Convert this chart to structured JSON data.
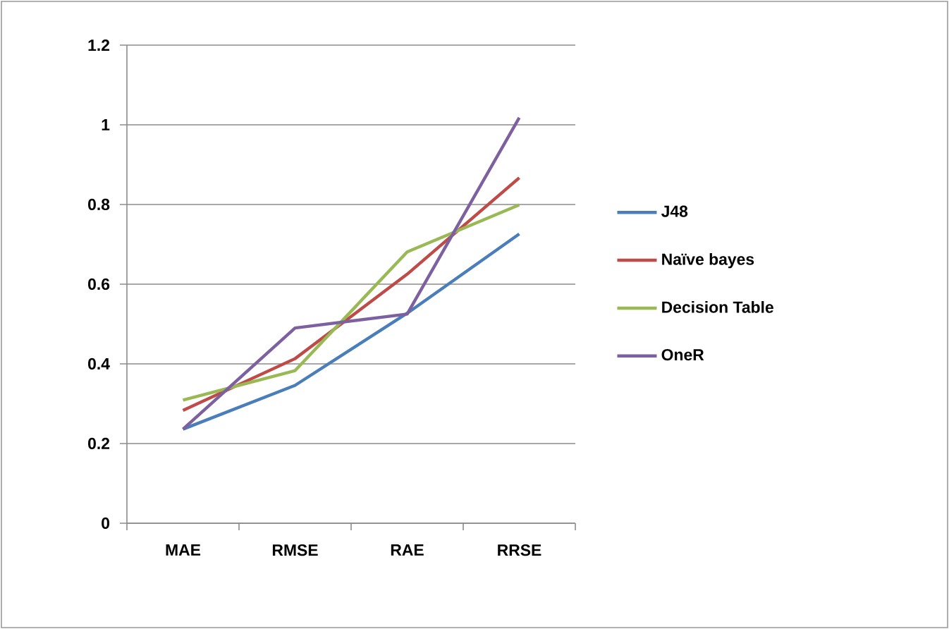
{
  "chart_data": {
    "type": "line",
    "categories": [
      "MAE",
      "RMSE",
      "RAE",
      "RRSE"
    ],
    "series": [
      {
        "name": "J48",
        "color": "#4a7ebb",
        "values": [
          0.236,
          0.346,
          0.527,
          0.726
        ]
      },
      {
        "name": "Naïve bayes",
        "color": "#be4b48",
        "values": [
          0.283,
          0.413,
          0.625,
          0.867
        ]
      },
      {
        "name": "Decision Table",
        "color": "#98b954",
        "values": [
          0.309,
          0.383,
          0.681,
          0.799
        ]
      },
      {
        "name": "OneR",
        "color": "#7d60a0",
        "values": [
          0.236,
          0.49,
          0.525,
          1.018
        ]
      }
    ],
    "ylim": [
      0,
      1.2
    ],
    "yticks": [
      0,
      0.2,
      0.4,
      0.6,
      0.8,
      1,
      1.2
    ],
    "grid": "y",
    "legend": "right",
    "marker": "none",
    "line_style": "solid"
  }
}
